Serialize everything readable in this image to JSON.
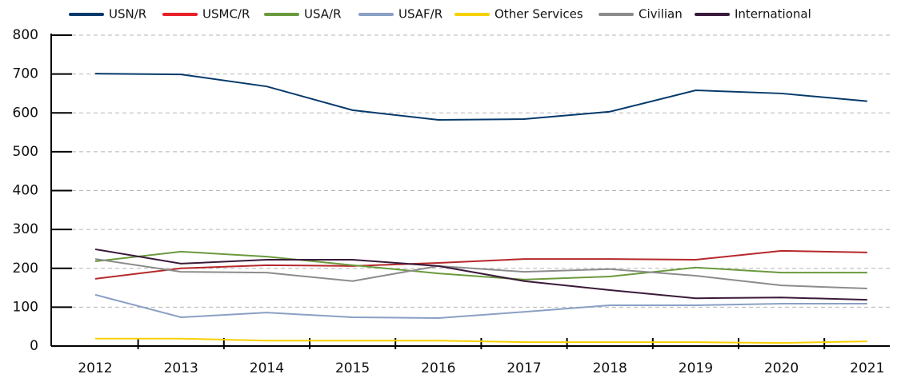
{
  "chart_data": {
    "type": "line",
    "categories": [
      "2012",
      "2013",
      "2014",
      "2015",
      "2016",
      "2017",
      "2018",
      "2019",
      "2020",
      "2021"
    ],
    "series": [
      {
        "name": "USN/R",
        "color": "#063a6b",
        "values": [
          701,
          699,
          668,
          607,
          582,
          584,
          603,
          658,
          650,
          630
        ]
      },
      {
        "name": "USMC/R",
        "color": "#b5282b",
        "legend_color": "#e8202a",
        "values": [
          173,
          200,
          208,
          206,
          214,
          224,
          224,
          222,
          245,
          241
        ]
      },
      {
        "name": "USA/R",
        "color": "#6a9a3d",
        "values": [
          218,
          243,
          230,
          208,
          187,
          171,
          179,
          202,
          189,
          189
        ]
      },
      {
        "name": "USAF/R",
        "color": "#8aa0c4",
        "values": [
          132,
          74,
          86,
          74,
          72,
          88,
          105,
          105,
          109,
          109
        ]
      },
      {
        "name": "Other Services",
        "color": "#f7d000",
        "values": [
          19,
          19,
          14,
          14,
          14,
          10,
          10,
          10,
          8,
          12
        ]
      },
      {
        "name": "Civilian",
        "color": "#8c8c8c",
        "values": [
          224,
          191,
          189,
          167,
          206,
          191,
          198,
          181,
          156,
          148
        ]
      },
      {
        "name": "International",
        "color": "#3a1a3a",
        "values": [
          249,
          212,
          222,
          222,
          206,
          167,
          144,
          123,
          125,
          119
        ]
      }
    ],
    "ylim": [
      0,
      800
    ],
    "yticks": [
      0,
      100,
      200,
      300,
      400,
      500,
      600,
      700,
      800
    ],
    "grid": true,
    "legend": "top"
  }
}
